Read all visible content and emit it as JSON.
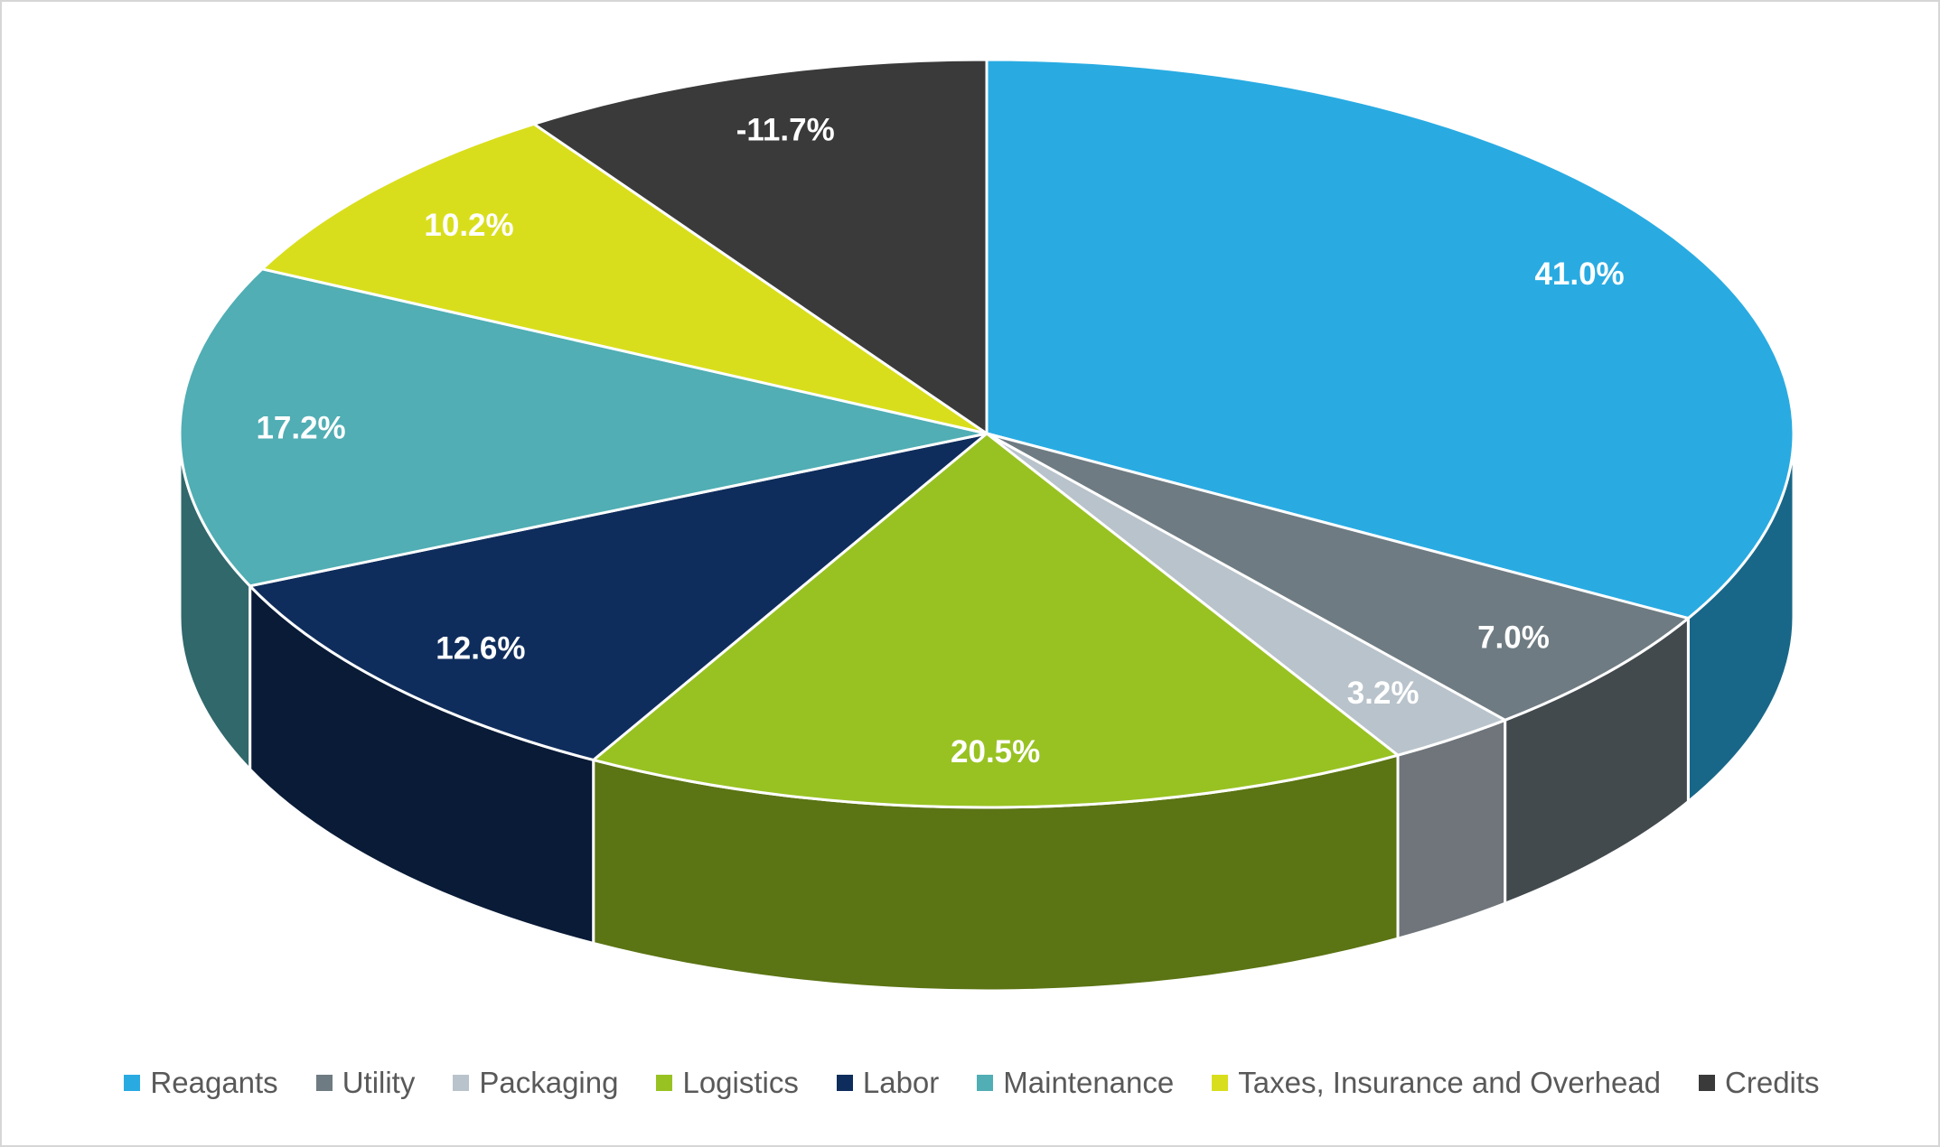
{
  "chart_data": {
    "type": "pie",
    "style": "3d",
    "title": "",
    "legend_position": "bottom",
    "direction": "clockwise",
    "start_angle_deg": 0,
    "labels": [
      "Reagants",
      "Utility",
      "Packaging",
      "Logistics",
      "Labor",
      "Maintenance",
      "Taxes, Insurance and Overhead",
      "Credits"
    ],
    "values": [
      41.0,
      7.0,
      3.2,
      20.5,
      12.6,
      17.2,
      10.2,
      -11.7
    ],
    "data_labels": [
      "41.0%",
      "7.0%",
      "3.2%",
      "20.5%",
      "12.6%",
      "17.2%",
      "10.2%",
      "-11.7%"
    ],
    "colors": [
      "#29ABE2",
      "#6E7B82",
      "#B9C3CB",
      "#98C222",
      "#0F2D5C",
      "#50AEB4",
      "#D9DE1C",
      "#3A3A3A"
    ],
    "data_label_color": "#FFFFFF",
    "legend_text_color": "#595959",
    "frame_border_color": "#D6D6D6",
    "background_color": "#FFFFFF"
  }
}
